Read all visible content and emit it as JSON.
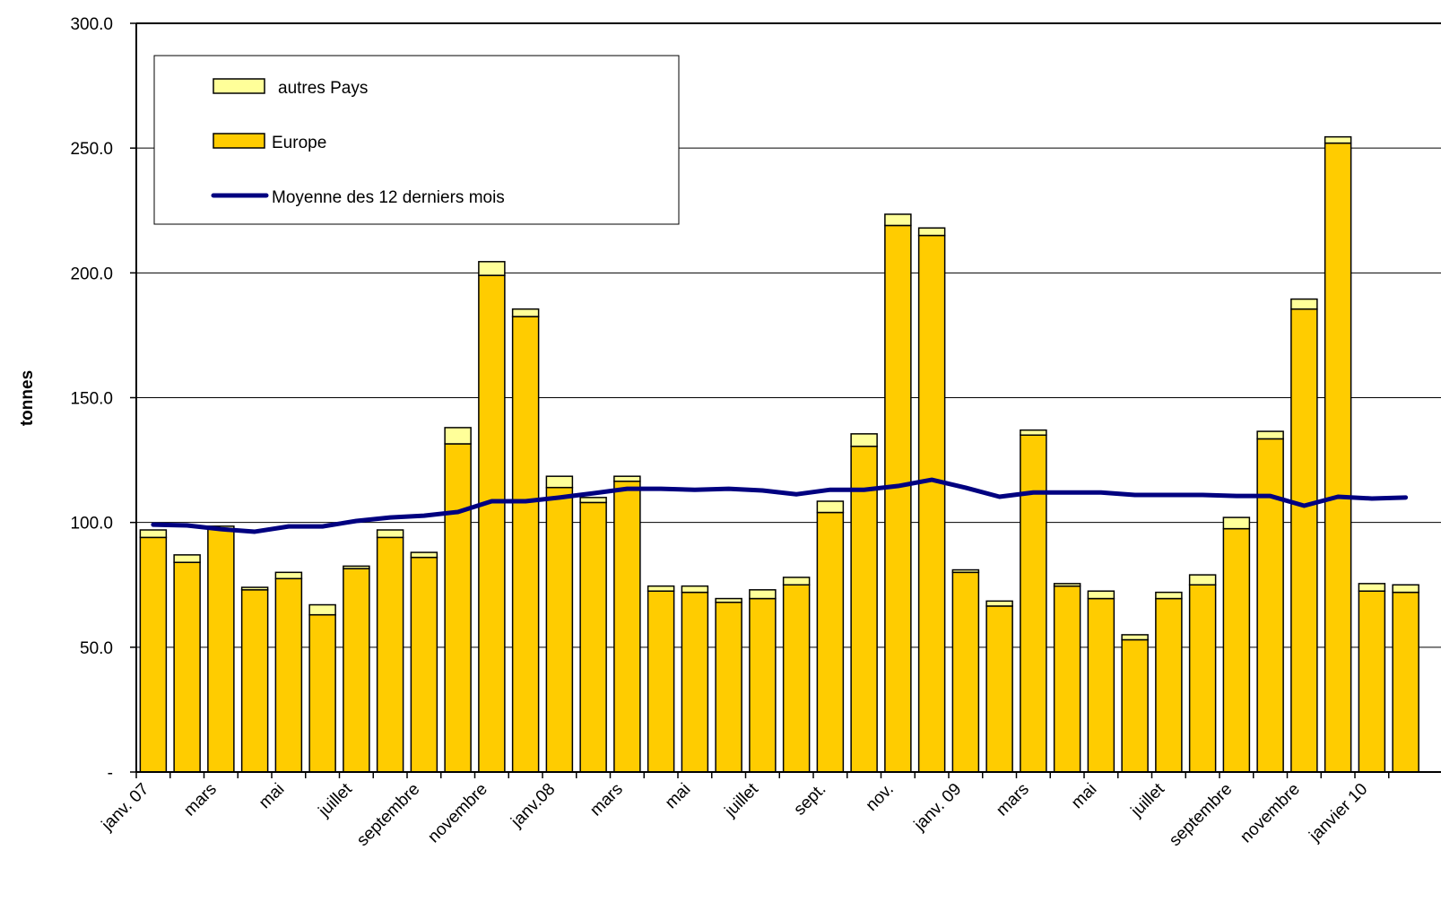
{
  "chart_data": {
    "type": "bar",
    "stacked": true,
    "y_axis_label": "tonnes",
    "categories": [
      "janv. 07",
      null,
      "mars",
      null,
      "mai",
      null,
      "juillet",
      null,
      "septembre",
      null,
      "novembre",
      null,
      "janv.08",
      null,
      "mars",
      null,
      "mai",
      null,
      "juillet",
      null,
      "sept.",
      null,
      "nov.",
      null,
      "janv. 09",
      null,
      "mars",
      null,
      "mai",
      null,
      "juillet",
      null,
      "septembre",
      null,
      "novembre",
      null,
      "janvier 10",
      null
    ],
    "series": [
      {
        "name": "autres Pays",
        "kind": "bar",
        "color": "#FFFF99",
        "values": [
          3,
          3,
          1,
          1,
          2.5,
          4,
          1,
          3,
          2,
          6.5,
          5.5,
          3,
          4.5,
          2,
          2,
          2,
          2.5,
          1.5,
          3.5,
          3,
          4.5,
          5,
          4.5,
          3,
          1,
          2,
          2,
          1,
          3,
          2,
          2.5,
          4,
          4.5,
          3,
          4,
          2.5,
          3,
          3
        ]
      },
      {
        "name": "Europe",
        "kind": "bar",
        "color": "#FFCC00",
        "values": [
          94,
          84,
          97.5,
          73,
          77.5,
          63,
          81.5,
          94,
          86,
          131.5,
          199,
          182.5,
          114,
          108,
          116.5,
          72.5,
          72,
          68,
          69.5,
          75,
          104,
          130.5,
          219,
          215,
          80,
          66.5,
          135,
          74.5,
          69.5,
          53,
          69.5,
          75,
          97.5,
          133.5,
          185.5,
          252,
          72.5,
          72
        ]
      },
      {
        "name": "Moyenne des 12 derniers mois",
        "kind": "line",
        "color": "#000080",
        "values": [
          99.1,
          98.8,
          97.3,
          96.3,
          98.4,
          98.4,
          100.6,
          102,
          102.7,
          104.2,
          108.5,
          108.5,
          110,
          111.7,
          113.5,
          113.5,
          113.1,
          113.5,
          112.8,
          111.3,
          113.1,
          113.1,
          114.6,
          117.1,
          113.9,
          110.3,
          112,
          112,
          112,
          111,
          111,
          111,
          110.6,
          110.6,
          106.7,
          110.3,
          109.6,
          110
        ]
      }
    ],
    "ylim": [
      0,
      300
    ],
    "yticks": [
      {
        "value": 0,
        "label": "-"
      },
      {
        "value": 50,
        "label": "50.0"
      },
      {
        "value": 100,
        "label": "100.0"
      },
      {
        "value": 150,
        "label": "150.0"
      },
      {
        "value": 200,
        "label": "200.0"
      },
      {
        "value": 250,
        "label": "250.0"
      },
      {
        "value": 300,
        "label": "300.0"
      }
    ],
    "grid": true,
    "legend": "upper-left"
  }
}
